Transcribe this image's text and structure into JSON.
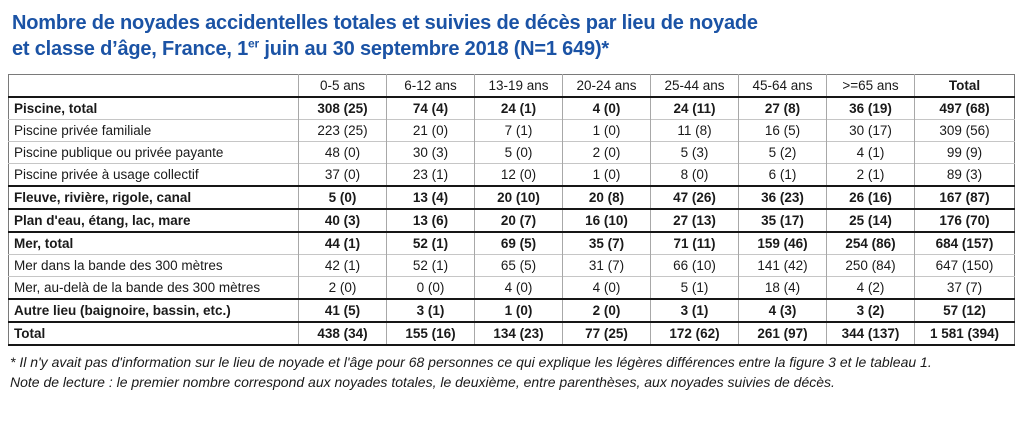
{
  "title": {
    "line1": "Nombre de noyades accidentelles totales et suivies de décès par lieu de noyade",
    "line2_prefix": "et classe d’âge, France, 1",
    "line2_superscript": "er",
    "line2_suffix": " juin au 30 septembre 2018 (N=1 649)*"
  },
  "table": {
    "columns": [
      "",
      "0-5 ans",
      "6-12 ans",
      "13-19 ans",
      "20-24 ans",
      "25-44 ans",
      "45-64 ans",
      ">=65 ans",
      "Total"
    ],
    "rows": [
      {
        "label": "Piscine, total",
        "emphasis": true,
        "values": [
          "308 (25)",
          "74 (4)",
          "24 (1)",
          "4 (0)",
          "24 (11)",
          "27 (8)",
          "36 (19)",
          "497 (68)"
        ]
      },
      {
        "label": "Piscine privée familiale",
        "emphasis": false,
        "values": [
          "223 (25)",
          "21 (0)",
          "7 (1)",
          "1 (0)",
          "11 (8)",
          "16 (5)",
          "30 (17)",
          "309 (56)"
        ]
      },
      {
        "label": "Piscine publique ou privée payante",
        "emphasis": false,
        "values": [
          "48 (0)",
          "30 (3)",
          "5 (0)",
          "2 (0)",
          "5 (3)",
          "5 (2)",
          "4 (1)",
          "99 (9)"
        ]
      },
      {
        "label": "Piscine privée à usage collectif",
        "emphasis": false,
        "values": [
          "37 (0)",
          "23 (1)",
          "12 (0)",
          "1 (0)",
          "8 (0)",
          "6 (1)",
          "2 (1)",
          "89 (3)"
        ]
      },
      {
        "label": "Fleuve, rivière, rigole, canal",
        "emphasis": true,
        "values": [
          "5 (0)",
          "13 (4)",
          "20 (10)",
          "20 (8)",
          "47 (26)",
          "36 (23)",
          "26 (16)",
          "167 (87)"
        ]
      },
      {
        "label": "Plan d'eau, étang, lac, mare",
        "emphasis": true,
        "values": [
          "40 (3)",
          "13 (6)",
          "20 (7)",
          "16 (10)",
          "27 (13)",
          "35 (17)",
          "25 (14)",
          "176 (70)"
        ]
      },
      {
        "label": "Mer, total",
        "emphasis": true,
        "values": [
          "44 (1)",
          "52 (1)",
          "69 (5)",
          "35 (7)",
          "71 (11)",
          "159 (46)",
          "254 (86)",
          "684 (157)"
        ]
      },
      {
        "label": "Mer dans la bande des 300 mètres",
        "emphasis": false,
        "values": [
          "42 (1)",
          "52 (1)",
          "65 (5)",
          "31 (7)",
          "66 (10)",
          "141 (42)",
          "250 (84)",
          "647 (150)"
        ]
      },
      {
        "label": "Mer, au-delà de la bande des 300 mètres",
        "emphasis": false,
        "values": [
          "2 (0)",
          "0 (0)",
          "4 (0)",
          "4 (0)",
          "5 (1)",
          "18 (4)",
          "4 (2)",
          "37 (7)"
        ]
      },
      {
        "label": "Autre lieu (baignoire, bassin, etc.)",
        "emphasis": true,
        "values": [
          "41 (5)",
          "3 (1)",
          "1 (0)",
          "2 (0)",
          "3 (1)",
          "4 (3)",
          "3 (2)",
          "57 (12)"
        ]
      },
      {
        "label": "Total",
        "emphasis": true,
        "values": [
          "438 (34)",
          "155 (16)",
          "134 (23)",
          "77 (25)",
          "172 (62)",
          "261 (97)",
          "344 (137)",
          "1 581 (394)"
        ]
      }
    ]
  },
  "footnotes": {
    "asterisk_note": "* Il n'y avait pas d'information sur le lieu de noyade et l'âge pour 68 personnes ce qui explique les légères différences entre la figure 3 et le tableau 1.",
    "reading_note": "Note de lecture : le premier nombre correspond aux noyades totales, le deuxième, entre parenthèses, aux noyades suivies de décès."
  },
  "colors": {
    "title_blue": "#1B53A5",
    "grid_thin": "#c6c6c6",
    "grid_vertical": "#a8a8a8",
    "grid_thick": "#161616",
    "text": "#1a1a1a"
  }
}
